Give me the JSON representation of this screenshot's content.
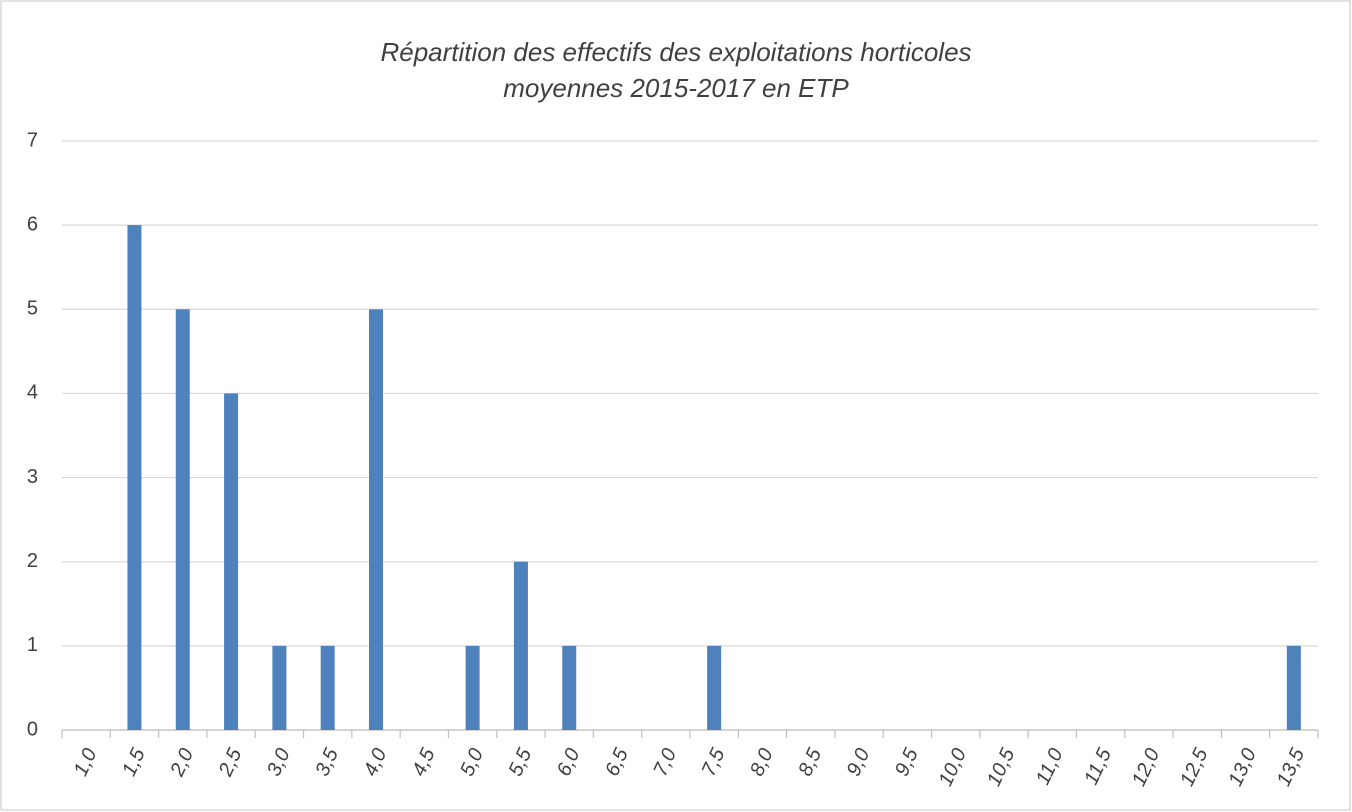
{
  "chart_data": {
    "type": "bar",
    "title": [
      "Répartition des effectifs des exploitations horticoles",
      "moyennes 2015-2017 en ETP"
    ],
    "categories": [
      "1,0",
      "1,5",
      "2,0",
      "2,5",
      "3,0",
      "3,5",
      "4,0",
      "4,5",
      "5,0",
      "5,5",
      "6,0",
      "6,5",
      "7,0",
      "7,5",
      "8,0",
      "8,5",
      "9,0",
      "9,5",
      "10,0",
      "10,5",
      "11,0",
      "11,5",
      "12,0",
      "12,5",
      "13,0",
      "13,5"
    ],
    "values": [
      0,
      6,
      5,
      4,
      1,
      1,
      5,
      0,
      1,
      2,
      1,
      0,
      0,
      1,
      0,
      0,
      0,
      0,
      0,
      0,
      0,
      0,
      0,
      0,
      0,
      1
    ],
    "color": "#4f81bd",
    "ylim": [
      0,
      7
    ],
    "yticks": [
      0,
      1,
      2,
      3,
      4,
      5,
      6,
      7
    ],
    "grid": true
  }
}
